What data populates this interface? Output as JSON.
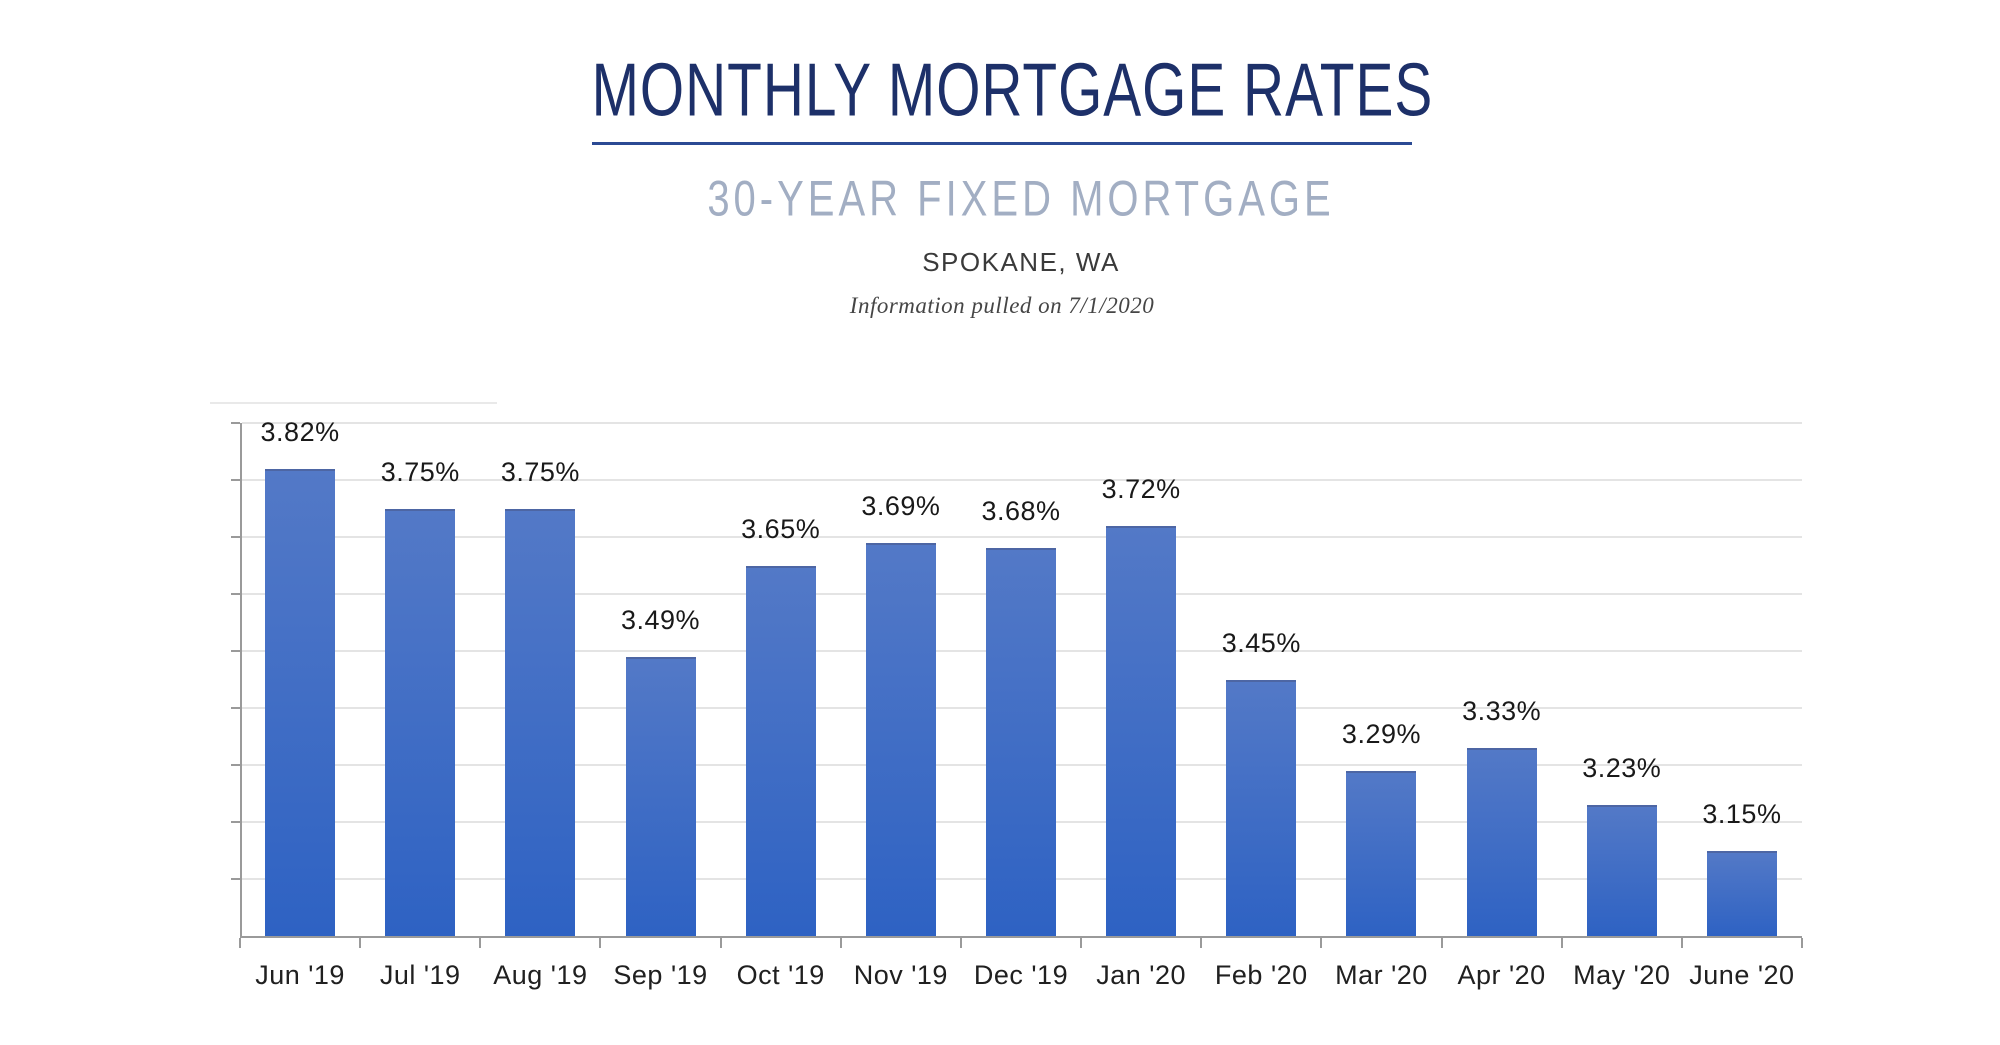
{
  "header": {
    "title": "MONTHLY MORTGAGE RATES",
    "subtitle": "30-YEAR FIXED MORTGAGE",
    "location": "SPOKANE, WA",
    "note": "Information pulled on 7/1/2020"
  },
  "colors": {
    "title": "#1d3069",
    "underline": "#2b4a94",
    "subtitle": "#a2aec3",
    "location": "#3a3a3a",
    "note": "#454545",
    "bar_top": "#5379c7",
    "bar_bottom": "#2e62c3",
    "bar_top_edge": "#4d66a4",
    "gridline": "#e4e4e4",
    "artifact_line": "#e9e9e9",
    "axis": "#9a9a9a",
    "value_label": "#191919",
    "category_label": "#202020",
    "background": "#ffffff"
  },
  "chart_data": {
    "type": "bar",
    "title": "MONTHLY MORTGAGE RATES",
    "subtitle": "30-YEAR FIXED MORTGAGE",
    "categories": [
      "Jun '19",
      "Jul '19",
      "Aug '19",
      "Sep '19",
      "Oct '19",
      "Nov '19",
      "Dec '19",
      "Jan '20",
      "Feb '20",
      "Mar '20",
      "Apr '20",
      "May '20",
      "June '20"
    ],
    "values": [
      3.82,
      3.75,
      3.75,
      3.49,
      3.65,
      3.69,
      3.68,
      3.72,
      3.45,
      3.29,
      3.33,
      3.23,
      3.15
    ],
    "value_labels": [
      "3.82%",
      "3.75%",
      "3.75%",
      "3.49%",
      "3.65%",
      "3.69%",
      "3.68%",
      "3.72%",
      "3.45%",
      "3.29%",
      "3.33%",
      "3.23%",
      "3.15%"
    ],
    "xlabel": "",
    "ylabel": "",
    "ylim": [
      3.0,
      3.9
    ],
    "grid_step": 0.1,
    "grid": "on",
    "legend": "none",
    "y_tick_labels_shown": false,
    "value_suffix": "%"
  }
}
